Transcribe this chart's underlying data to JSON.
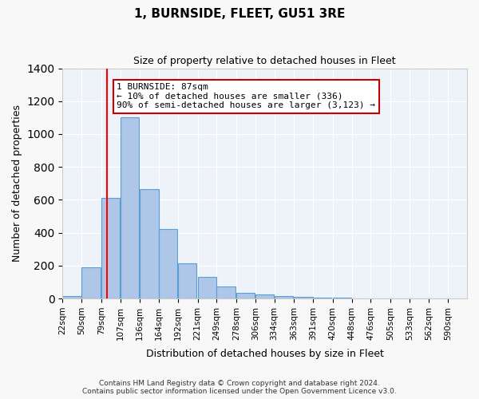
{
  "title": "1, BURNSIDE, FLEET, GU51 3RE",
  "subtitle": "Size of property relative to detached houses in Fleet",
  "xlabel": "Distribution of detached houses by size in Fleet",
  "ylabel": "Number of detached properties",
  "bin_labels": [
    "22sqm",
    "50sqm",
    "79sqm",
    "107sqm",
    "136sqm",
    "164sqm",
    "192sqm",
    "221sqm",
    "249sqm",
    "278sqm",
    "306sqm",
    "334sqm",
    "363sqm",
    "391sqm",
    "420sqm",
    "448sqm",
    "476sqm",
    "505sqm",
    "533sqm",
    "562sqm",
    "590sqm"
  ],
  "bin_edges": [
    22,
    50,
    79,
    107,
    136,
    164,
    192,
    221,
    249,
    278,
    306,
    334,
    363,
    391,
    420,
    448,
    476,
    505,
    533,
    562,
    590
  ],
  "bar_heights": [
    15,
    190,
    610,
    1100,
    665,
    420,
    215,
    130,
    75,
    35,
    25,
    15,
    10,
    5,
    3,
    2,
    1,
    1,
    0,
    0
  ],
  "bar_color": "#aec6e8",
  "bar_edge_color": "#5a9fd4",
  "red_line_x": 87,
  "annotation_text": "1 BURNSIDE: 87sqm\n← 10% of detached houses are smaller (336)\n90% of semi-detached houses are larger (3,123) →",
  "annotation_box_color": "#ffffff",
  "annotation_box_edge": "#cc0000",
  "ylim": [
    0,
    1400
  ],
  "yticks": [
    0,
    200,
    400,
    600,
    800,
    1000,
    1200,
    1400
  ],
  "background_color": "#eef2f9",
  "grid_color": "#ffffff",
  "footer_line1": "Contains HM Land Registry data © Crown copyright and database right 2024.",
  "footer_line2": "Contains public sector information licensed under the Open Government Licence v3.0."
}
